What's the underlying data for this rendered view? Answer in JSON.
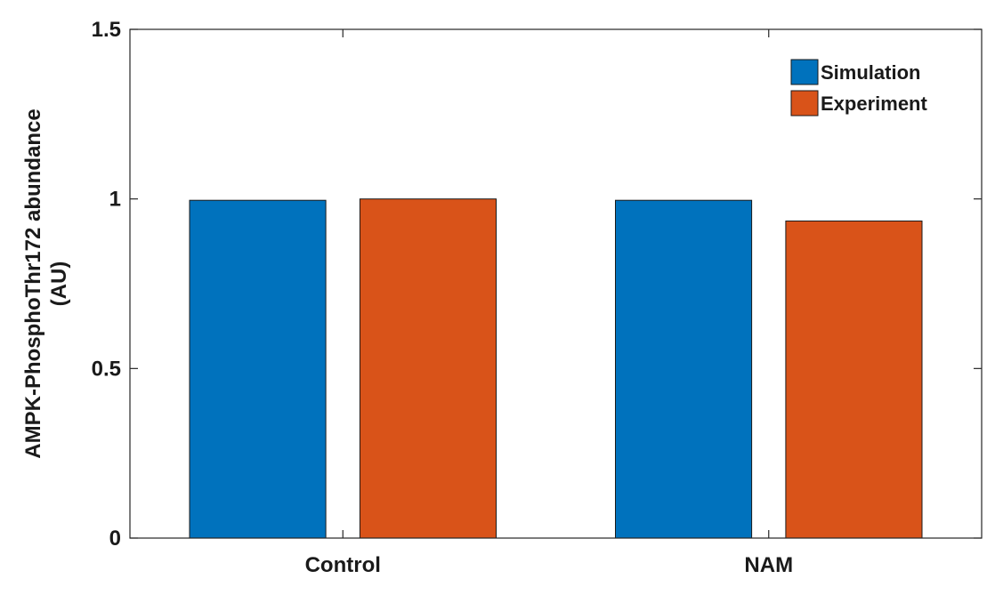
{
  "chart_data": {
    "type": "bar",
    "categories": [
      "Control",
      "NAM"
    ],
    "series": [
      {
        "name": "Simulation",
        "color": "#0072BD",
        "values": [
          0.996,
          0.996
        ]
      },
      {
        "name": "Experiment",
        "color": "#D95319",
        "values": [
          1.0,
          0.935
        ]
      }
    ],
    "ylabel_line1": "AMPK-PhosphoThr172 abundance",
    "ylabel_line2": "(AU)",
    "ylim": [
      0,
      1.5
    ],
    "yticks": [
      0,
      0.5,
      1,
      1.5
    ],
    "ytick_labels": [
      "0",
      "0.5",
      "1",
      "1.5"
    ],
    "grid": false,
    "legend_position": "top-right"
  }
}
